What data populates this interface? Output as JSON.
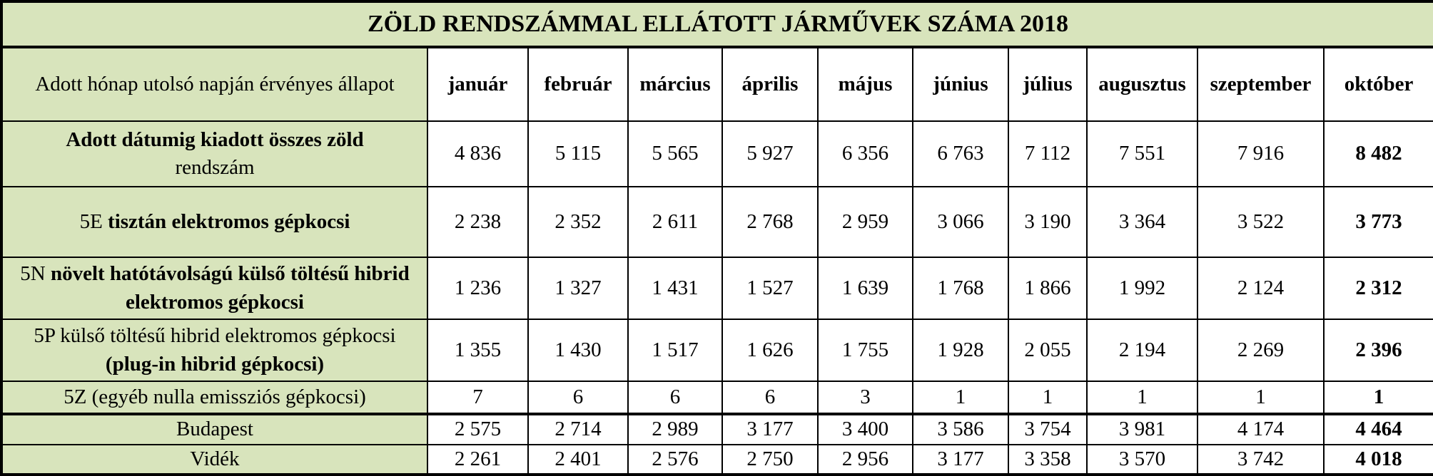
{
  "title": "ZÖLD RENDSZÁMMAL ELLÁTOTT JÁRMŰVEK SZÁMA 2018",
  "table": {
    "header": [
      "Adott hónap utolsó napján érvényes állapot",
      "január",
      "február",
      "március",
      "április",
      "május",
      "június",
      "július",
      "augusztus",
      "szeptember",
      "október"
    ],
    "rows": [
      {
        "label": [
          "Adott dátumig kiadott összes zöld",
          "rendszám"
        ],
        "values": [
          "4 836",
          "5 115",
          "5 565",
          "5 927",
          "6 356",
          "6 763",
          "7 112",
          "7 551",
          "7 916",
          "8 482"
        ]
      },
      {
        "label": [
          "5E",
          "tisztán elektromos gépkocsi"
        ],
        "values": [
          "2 238",
          "2 352",
          "2 611",
          "2 768",
          "2 959",
          "3 066",
          "3 190",
          "3 364",
          "3 522",
          "3 773"
        ]
      },
      {
        "label": [
          "5N",
          "növelt hatótávolságú külső töltésű hibrid elektromos gépkocsi"
        ],
        "values": [
          "1 236",
          "1 327",
          "1 431",
          "1 527",
          "1 639",
          "1 768",
          "1 866",
          "1 992",
          "2 124",
          "2 312"
        ]
      },
      {
        "label": [
          "5P külső töltésű hibrid elektromos gépkocsi",
          "(plug-in hibrid gépkocsi)"
        ],
        "values": [
          "1 355",
          "1 430",
          "1 517",
          "1 626",
          "1 755",
          "1 928",
          "2 055",
          "2 194",
          "2 269",
          "2 396"
        ]
      },
      {
        "label": [
          "5Z (egyéb nulla emissziós gépkocsi)"
        ],
        "values": [
          "7",
          "6",
          "6",
          "6",
          "3",
          "1",
          "1",
          "1",
          "1",
          "1"
        ]
      },
      {
        "label": [
          "Budapest"
        ],
        "values": [
          "2 575",
          "2 714",
          "2 989",
          "3 177",
          "3 400",
          "3 586",
          "3 754",
          "3 981",
          "4 174",
          "4 464"
        ]
      },
      {
        "label": [
          "Vidék"
        ],
        "values": [
          "2 261",
          "2 401",
          "2 576",
          "2 750",
          "2 956",
          "3 177",
          "3 358",
          "3 570",
          "3 742",
          "4 018"
        ]
      }
    ]
  }
}
